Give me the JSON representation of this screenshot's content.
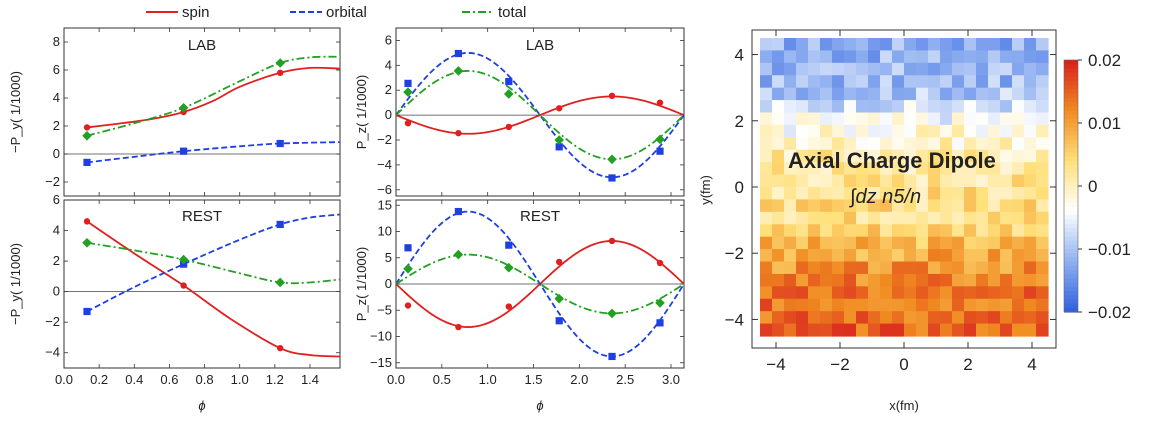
{
  "legend": {
    "items": [
      {
        "label": "spin",
        "color": "#e02020",
        "dash": "solid"
      },
      {
        "label": "orbital",
        "color": "#1f3fe0",
        "dash": "dashed"
      },
      {
        "label": "total",
        "color": "#22a022",
        "dash": "dashdot"
      }
    ]
  },
  "heatmap_annotation": {
    "title": "Axial Charge Dipole",
    "formula": "∫dz n5/n"
  },
  "chart_data": [
    {
      "id": "lab-py",
      "type": "line",
      "panel_title": "LAB",
      "ylabel": "−P_y( 1/1000)",
      "xlim": [
        0,
        1.5708
      ],
      "ylim": [
        -3,
        9
      ],
      "yticks": [
        -2,
        0,
        2,
        4,
        6,
        8
      ],
      "xticks": [
        0.0,
        0.2,
        0.4,
        0.6,
        0.8,
        1.0,
        1.2,
        1.4
      ],
      "show_xtick_labels": false,
      "zero_line": true,
      "series": [
        {
          "name": "spin",
          "x": [
            0.1309,
            0.3,
            0.5,
            0.6807,
            0.85,
            1.0,
            1.2304,
            1.4,
            1.5708
          ],
          "y": [
            1.9,
            2.15,
            2.5,
            3.0,
            3.8,
            4.8,
            5.8,
            6.15,
            6.1
          ],
          "markers_x": [
            0.1309,
            0.6807,
            1.2304
          ],
          "markers_y": [
            1.9,
            3.0,
            5.8
          ],
          "marker": "circle"
        },
        {
          "name": "orbital",
          "x": [
            0.1309,
            0.4,
            0.6807,
            1.0,
            1.2304,
            1.5708
          ],
          "y": [
            -0.6,
            -0.2,
            0.2,
            0.55,
            0.75,
            0.85
          ],
          "markers_x": [
            0.1309,
            0.6807,
            1.2304
          ],
          "markers_y": [
            -0.6,
            0.2,
            0.75
          ],
          "marker": "square"
        },
        {
          "name": "total",
          "x": [
            0.1309,
            0.4,
            0.6807,
            1.0,
            1.2304,
            1.4,
            1.5708
          ],
          "y": [
            1.3,
            2.2,
            3.3,
            5.2,
            6.5,
            6.9,
            6.95
          ],
          "markers_x": [
            0.1309,
            0.6807,
            1.2304
          ],
          "markers_y": [
            1.3,
            3.3,
            6.5
          ],
          "marker": "diamond"
        }
      ]
    },
    {
      "id": "rest-py",
      "type": "line",
      "panel_title": "REST",
      "ylabel": "−P_y( 1/1000)",
      "xlabel": "ϕ",
      "xlim": [
        0,
        1.5708
      ],
      "ylim": [
        -5,
        6
      ],
      "yticks": [
        -4,
        -2,
        0,
        2,
        4,
        6
      ],
      "xticks": [
        0.0,
        0.2,
        0.4,
        0.6,
        0.8,
        1.0,
        1.2,
        1.4
      ],
      "xtick_labels": [
        "0.0",
        "0.2",
        "0.4",
        "0.6",
        "0.8",
        "1.0",
        "1.2",
        "1.4"
      ],
      "show_xtick_labels": true,
      "zero_line": true,
      "series": [
        {
          "name": "spin",
          "x": [
            0.1309,
            0.4,
            0.6807,
            0.95,
            1.2304,
            1.4,
            1.5708
          ],
          "y": [
            4.6,
            2.5,
            0.4,
            -1.8,
            -3.7,
            -4.15,
            -4.25
          ],
          "markers_x": [
            0.1309,
            0.6807,
            1.2304
          ],
          "markers_y": [
            4.6,
            0.4,
            -3.7
          ],
          "marker": "circle"
        },
        {
          "name": "orbital",
          "x": [
            0.1309,
            0.4,
            0.6807,
            1.0,
            1.2304,
            1.4,
            1.5708
          ],
          "y": [
            -1.3,
            0.3,
            1.8,
            3.4,
            4.4,
            4.85,
            5.05
          ],
          "markers_x": [
            0.1309,
            0.6807,
            1.2304
          ],
          "markers_y": [
            -1.3,
            1.8,
            4.4
          ],
          "marker": "square"
        },
        {
          "name": "total",
          "x": [
            0.1309,
            0.4,
            0.6807,
            1.0,
            1.2304,
            1.4,
            1.5708
          ],
          "y": [
            3.2,
            2.7,
            2.1,
            1.2,
            0.6,
            0.6,
            0.8
          ],
          "markers_x": [
            0.1309,
            0.6807,
            1.2304
          ],
          "markers_y": [
            3.2,
            2.1,
            0.6
          ],
          "marker": "diamond"
        }
      ]
    },
    {
      "id": "lab-pz",
      "type": "line",
      "panel_title": "LAB",
      "ylabel": "P_z( 1/1000)",
      "xlim": [
        0,
        3.1416
      ],
      "ylim": [
        -6.5,
        7
      ],
      "yticks": [
        -6,
        -4,
        -2,
        0,
        2,
        4,
        6
      ],
      "xticks": [
        0.0,
        0.5,
        1.0,
        1.5,
        2.0,
        2.5,
        3.0
      ],
      "show_xtick_labels": false,
      "zero_line": true,
      "series": [
        {
          "name": "spin",
          "waveform": {
            "a": -1.5,
            "period": 3.1416
          },
          "markers_x": [
            0.1309,
            0.6807,
            1.2304,
            1.7802,
            2.3562,
            2.8798
          ],
          "markers_y": [
            -0.65,
            -1.45,
            -0.95,
            0.55,
            1.55,
            1.0
          ],
          "marker": "circle"
        },
        {
          "name": "orbital",
          "waveform": {
            "a": 5.0,
            "period": 3.1416
          },
          "markers_x": [
            0.1309,
            0.6807,
            1.2304,
            1.7802,
            2.3562,
            2.8798
          ],
          "markers_y": [
            2.55,
            4.95,
            2.7,
            -2.55,
            -5.05,
            -2.9
          ],
          "marker": "square"
        },
        {
          "name": "total",
          "waveform": {
            "a": 3.55,
            "period": 3.1416
          },
          "markers_x": [
            0.1309,
            0.6807,
            1.2304,
            1.7802,
            2.3562,
            2.8798
          ],
          "markers_y": [
            1.85,
            3.55,
            1.7,
            -2.0,
            -3.55,
            -1.95
          ],
          "marker": "diamond"
        }
      ]
    },
    {
      "id": "rest-pz",
      "type": "line",
      "panel_title": "REST",
      "ylabel": "P_z( 1/1000)",
      "xlabel": "ϕ",
      "xlim": [
        0,
        3.1416
      ],
      "ylim": [
        -16,
        16
      ],
      "yticks": [
        -15,
        -10,
        -5,
        0,
        5,
        10,
        15
      ],
      "xticks": [
        0.0,
        0.5,
        1.0,
        1.5,
        2.0,
        2.5,
        3.0
      ],
      "xtick_labels": [
        "0.0",
        "0.5",
        "1.0",
        "1.5",
        "2.0",
        "2.5",
        "3.0"
      ],
      "show_xtick_labels": true,
      "zero_line": true,
      "series": [
        {
          "name": "spin",
          "waveform": {
            "a": -8.2,
            "period": 3.1416
          },
          "markers_x": [
            0.1309,
            0.6807,
            1.2304,
            1.7802,
            2.3562,
            2.8798
          ],
          "markers_y": [
            -4.1,
            -8.2,
            -4.3,
            4.2,
            8.2,
            4.0
          ],
          "marker": "circle"
        },
        {
          "name": "orbital",
          "waveform": {
            "a": 13.8,
            "period": 3.1416
          },
          "markers_x": [
            0.1309,
            0.6807,
            1.2304,
            1.7802,
            2.3562,
            2.8798
          ],
          "markers_y": [
            6.9,
            13.8,
            7.4,
            -7.0,
            -13.8,
            -7.4
          ],
          "marker": "square"
        },
        {
          "name": "total",
          "waveform": {
            "a": 5.6,
            "period": 3.1416
          },
          "markers_x": [
            0.1309,
            0.6807,
            1.2304,
            1.7802,
            2.3562,
            2.8798
          ],
          "markers_y": [
            2.9,
            5.6,
            3.1,
            -2.8,
            -5.6,
            -3.6
          ],
          "marker": "diamond"
        }
      ]
    },
    {
      "id": "heatmap",
      "type": "heatmap",
      "xlabel": "x(fm)",
      "ylabel": "y(fm)",
      "xlim": [
        -4.5,
        4.5
      ],
      "ylim": [
        -4.5,
        4.5
      ],
      "xticks": [
        -4,
        -2,
        0,
        2,
        4
      ],
      "xtick_labels": [
        "−4",
        "−2",
        "0",
        "2",
        "4"
      ],
      "yticks": [
        -4,
        -2,
        0,
        2,
        4
      ],
      "ytick_labels": [
        "−4",
        "−2",
        "0",
        "2",
        "4"
      ],
      "color_range": [
        -0.02,
        0.02
      ],
      "colorbar_ticks": [
        0.02,
        0.01,
        0,
        -0.01,
        -0.02
      ],
      "colorbar_labels": [
        "0.02",
        "0.01",
        "0",
        "−0.01",
        "−0.02"
      ],
      "colormap": [
        "#2f5fe0",
        "#8fb0f0",
        "#ffffff",
        "#ffe07a",
        "#f08a20",
        "#d81e1e"
      ],
      "row_profile_y": [
        4.3,
        3.0,
        2.0,
        1.0,
        0.0,
        -1.0,
        -2.0,
        -3.0,
        -4.3
      ],
      "row_profile_value": [
        -0.012,
        -0.011,
        -0.004,
        0.001,
        0.003,
        0.004,
        0.009,
        0.013,
        0.015
      ]
    }
  ]
}
